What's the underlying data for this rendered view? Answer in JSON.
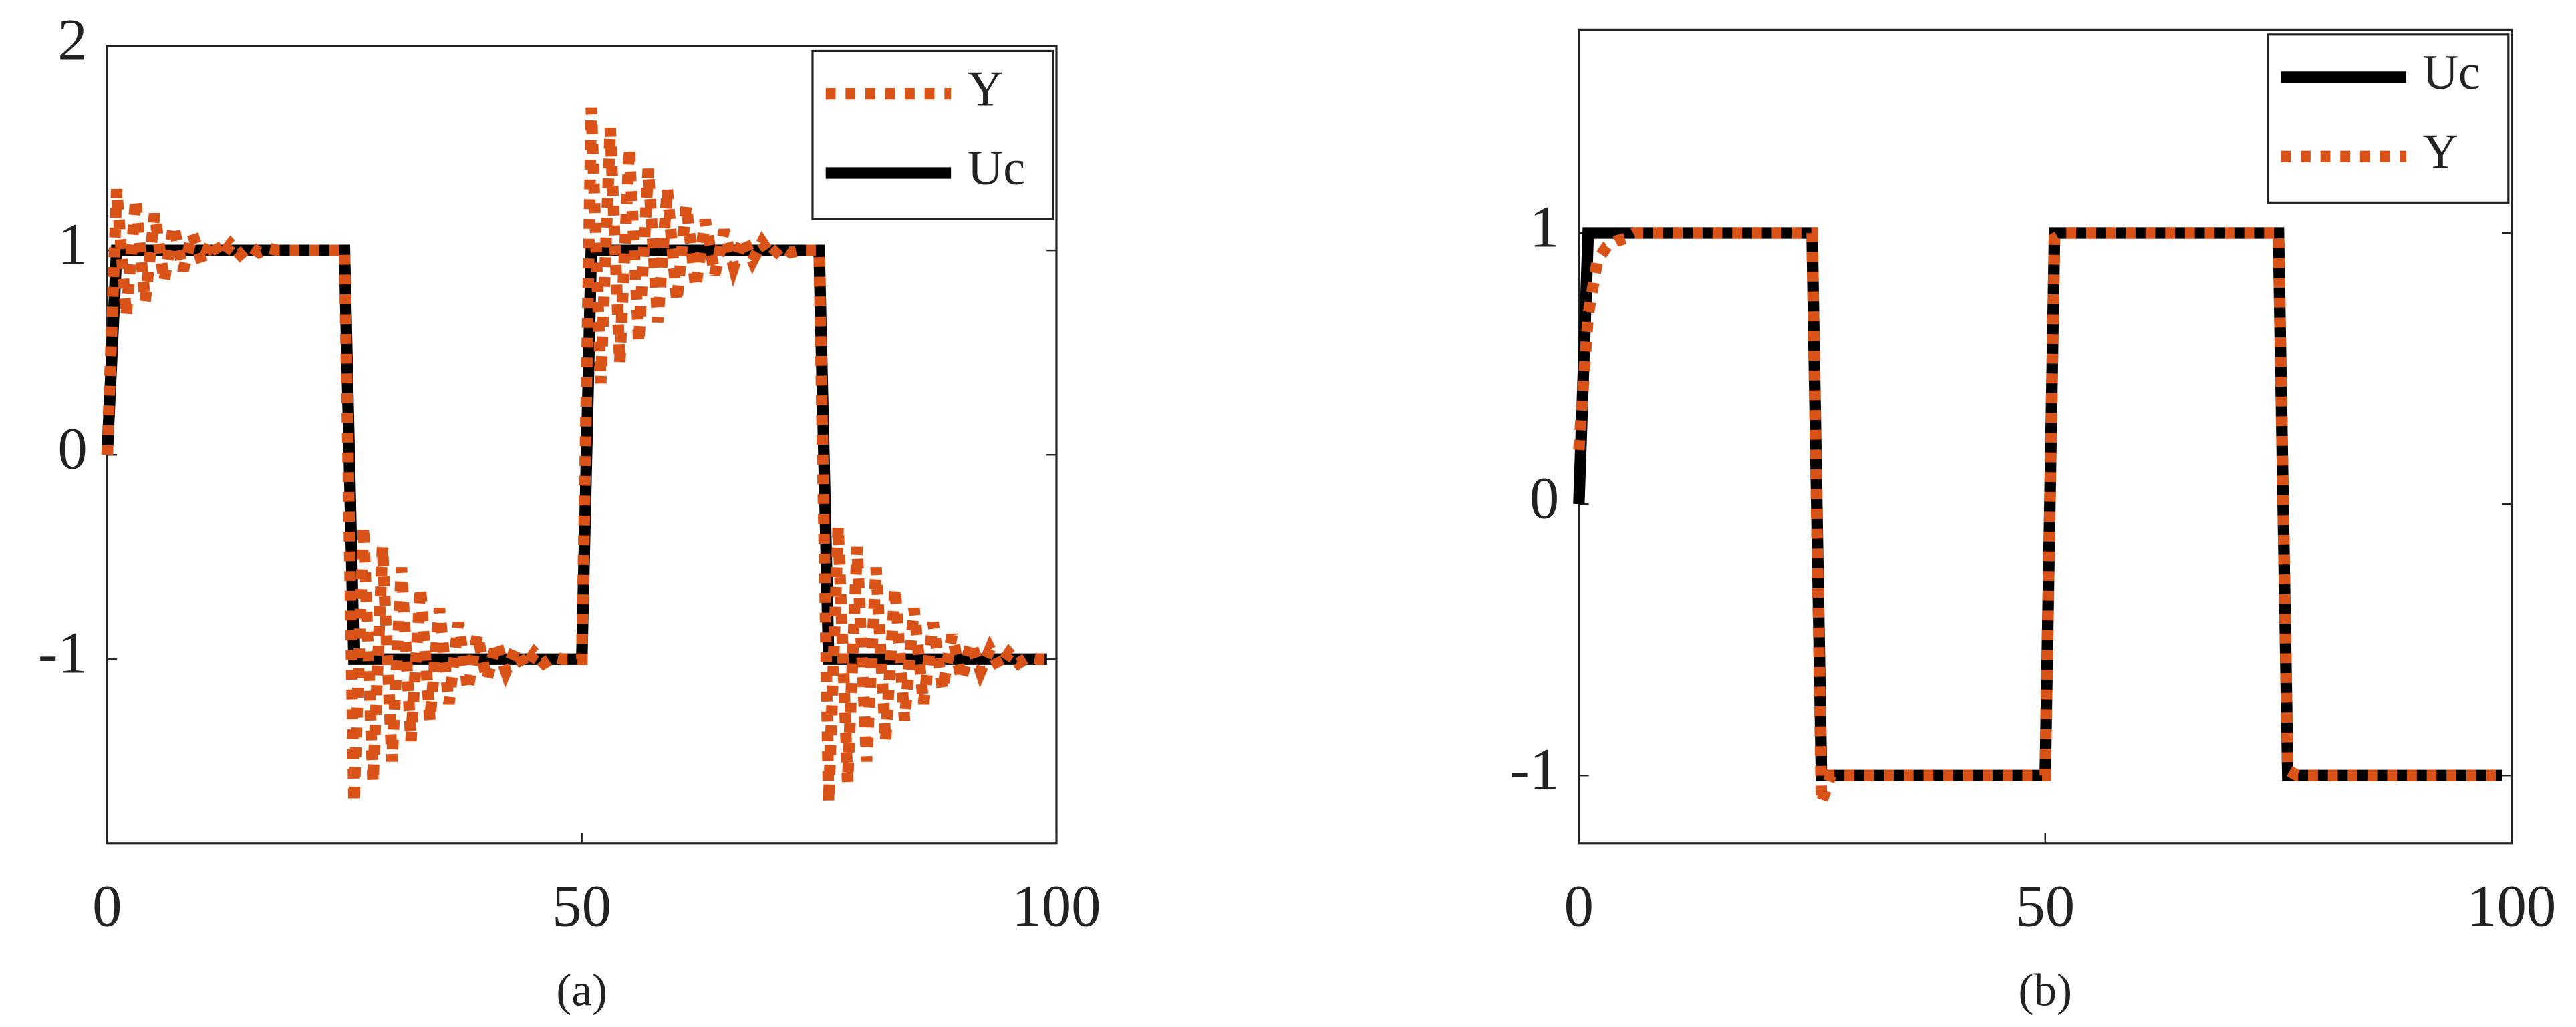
{
  "chart_data": [
    {
      "type": "line",
      "caption": "(a)",
      "legend": "upper right",
      "x": [
        0,
        1,
        2,
        3,
        4,
        5,
        6,
        7,
        8,
        9,
        10,
        11,
        12,
        13,
        14,
        15,
        16,
        17,
        18,
        19,
        20,
        21,
        22,
        23,
        24,
        25,
        26,
        27,
        28,
        29,
        30,
        31,
        32,
        33,
        34,
        35,
        36,
        37,
        38,
        39,
        40,
        41,
        42,
        43,
        44,
        45,
        46,
        47,
        48,
        49,
        50,
        51,
        52,
        53,
        54,
        55,
        56,
        57,
        58,
        59,
        60,
        61,
        62,
        63,
        64,
        65,
        66,
        67,
        68,
        69,
        70,
        71,
        72,
        73,
        74,
        75,
        76,
        77,
        78,
        79,
        80,
        81,
        82,
        83,
        84,
        85,
        86,
        87,
        88,
        89,
        90,
        91,
        92,
        93,
        94,
        95,
        96,
        97,
        98,
        99
      ],
      "series": [
        {
          "name": "Y",
          "color": "#d95319",
          "style": "dotted",
          "values": [
            0,
            1.3,
            0.68,
            1.25,
            0.75,
            1.18,
            0.85,
            1.12,
            0.9,
            1.08,
            0.94,
            1.05,
            0.97,
            1.03,
            0.98,
            1.02,
            0.99,
            1.01,
            1,
            1,
            1,
            1,
            1,
            1,
            1,
            1,
            -1.7,
            -0.35,
            -1.6,
            -0.45,
            -1.5,
            -0.55,
            -1.4,
            -0.65,
            -1.3,
            -0.75,
            -1.22,
            -0.82,
            -1.15,
            -0.88,
            -1.1,
            -0.92,
            -1.06,
            -0.95,
            -1.04,
            -0.97,
            -1.02,
            -0.99,
            -1,
            -1,
            -1,
            1.7,
            0.35,
            1.6,
            0.45,
            1.5,
            0.55,
            1.4,
            0.65,
            1.3,
            0.75,
            1.22,
            0.82,
            1.15,
            0.88,
            1.1,
            0.92,
            1.06,
            0.95,
            1.04,
            0.97,
            1.02,
            0.99,
            1,
            1,
            1,
            -1.7,
            -0.35,
            -1.6,
            -0.45,
            -1.5,
            -0.55,
            -1.4,
            -0.65,
            -1.3,
            -0.75,
            -1.22,
            -0.82,
            -1.15,
            -0.88,
            -1.1,
            -0.92,
            -1.06,
            -0.95,
            -1.04,
            -0.97,
            -1.02,
            -0.99,
            -1,
            -1
          ]
        },
        {
          "name": "Uc",
          "color": "#000000",
          "style": "solid",
          "values": [
            0,
            1,
            1,
            1,
            1,
            1,
            1,
            1,
            1,
            1,
            1,
            1,
            1,
            1,
            1,
            1,
            1,
            1,
            1,
            1,
            1,
            1,
            1,
            1,
            1,
            1,
            -1,
            -1,
            -1,
            -1,
            -1,
            -1,
            -1,
            -1,
            -1,
            -1,
            -1,
            -1,
            -1,
            -1,
            -1,
            -1,
            -1,
            -1,
            -1,
            -1,
            -1,
            -1,
            -1,
            -1,
            -1,
            1,
            1,
            1,
            1,
            1,
            1,
            1,
            1,
            1,
            1,
            1,
            1,
            1,
            1,
            1,
            1,
            1,
            1,
            1,
            1,
            1,
            1,
            1,
            1,
            1,
            -1,
            -1,
            -1,
            -1,
            -1,
            -1,
            -1,
            -1,
            -1,
            -1,
            -1,
            -1,
            -1,
            -1,
            -1,
            -1,
            -1,
            -1,
            -1,
            -1,
            -1,
            -1,
            -1,
            -1
          ]
        }
      ],
      "xlim": [
        0,
        100
      ],
      "xticks": [
        0,
        50,
        100
      ],
      "ylim": [
        -1.9,
        2
      ],
      "yticks": [
        -1,
        0,
        1,
        2
      ]
    },
    {
      "type": "line",
      "caption": "(b)",
      "legend": "upper right",
      "x": [
        0,
        1,
        2,
        3,
        4,
        5,
        6,
        25,
        26,
        27,
        50,
        51,
        52,
        75,
        76,
        77,
        99
      ],
      "series": [
        {
          "name": "Uc",
          "color": "#000000",
          "style": "solid",
          "values": [
            0,
            1,
            1,
            1,
            1,
            1,
            1,
            1,
            -1,
            -1,
            -1,
            1,
            1,
            1,
            -1,
            -1,
            -1
          ]
        },
        {
          "name": "Y",
          "color": "#d95319",
          "style": "dotted",
          "values": [
            0.2,
            0.7,
            0.9,
            0.95,
            0.97,
            0.98,
            1,
            1,
            -1.1,
            -1,
            -1,
            0.98,
            1,
            1,
            -0.98,
            -1,
            -1
          ]
        }
      ],
      "xlim": [
        0,
        100
      ],
      "xticks": [
        0,
        50,
        100
      ],
      "ylim": [
        -1.25,
        1.75
      ],
      "yticks": [
        -1,
        0,
        1
      ]
    }
  ]
}
